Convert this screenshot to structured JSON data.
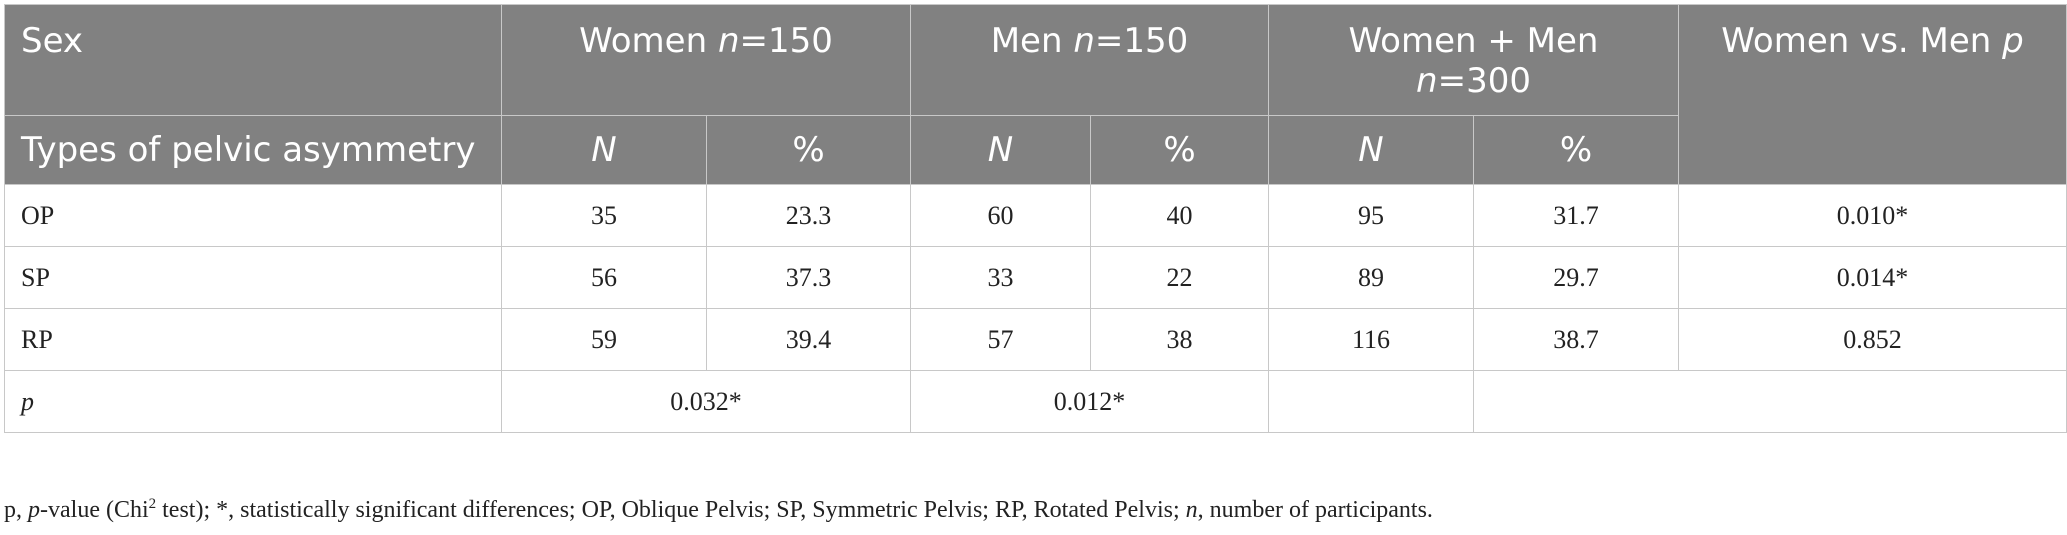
{
  "header": {
    "sex_label": "Sex",
    "types_label": "Types of pelvic asymmetry",
    "women": {
      "prefix": "Women ",
      "n_symbol": "n",
      "suffix": "=150"
    },
    "men": {
      "prefix": "Men ",
      "n_symbol": "n",
      "suffix": "=150"
    },
    "total": {
      "line1": "Women + Men",
      "n_symbol": "n",
      "suffix": "=300"
    },
    "comparison": {
      "prefix": "Women vs. Men ",
      "p_symbol": "p"
    },
    "col_N": "N",
    "col_pct": "%"
  },
  "rows": [
    {
      "type": "OP",
      "women_n": "35",
      "women_pct": "23.3",
      "men_n": "60",
      "men_pct": "40",
      "total_n": "95",
      "total_pct": "31.7",
      "p": "0.010*"
    },
    {
      "type": "SP",
      "women_n": "56",
      "women_pct": "37.3",
      "men_n": "33",
      "men_pct": "22",
      "total_n": "89",
      "total_pct": "29.7",
      "p": "0.014*"
    },
    {
      "type": "RP",
      "women_n": "59",
      "women_pct": "39.4",
      "men_n": "57",
      "men_pct": "38",
      "total_n": "116",
      "total_pct": "38.7",
      "p": "0.852"
    }
  ],
  "p_row": {
    "label": "p",
    "women": "0.032*",
    "men": "0.012*"
  },
  "footnote": {
    "part1": "p, ",
    "p_italic": "p",
    "part2": "-value (Chi",
    "sup": "2",
    "part3": " test); *, statistically significant differences; OP, Oblique Pelvis; SP, Symmetric Pelvis; RP, Rotated Pelvis; ",
    "n_italic": "n",
    "part4": ", number of participants."
  }
}
